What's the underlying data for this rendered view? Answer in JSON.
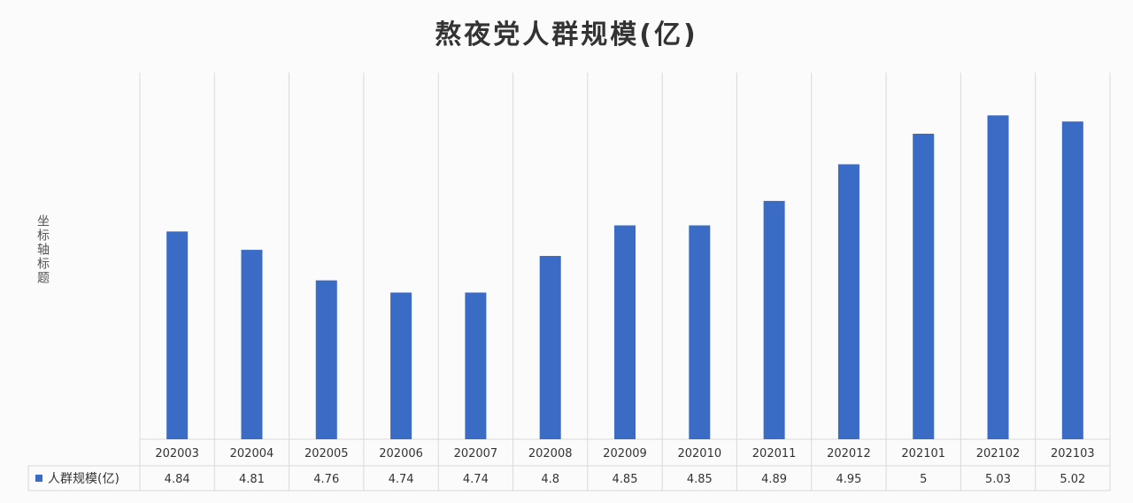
{
  "chart_data": {
    "type": "bar",
    "title": "熬夜党人群规模(亿)",
    "ylabel": "坐标轴标题",
    "xlabel": "",
    "categories": [
      "202003",
      "202004",
      "202005",
      "202006",
      "202007",
      "202008",
      "202009",
      "202010",
      "202011",
      "202012",
      "202101",
      "202102",
      "202103"
    ],
    "series": [
      {
        "name": "人群规模(亿)",
        "values": [
          4.84,
          4.81,
          4.76,
          4.74,
          4.74,
          4.8,
          4.85,
          4.85,
          4.89,
          4.95,
          5,
          5.03,
          5.02
        ],
        "value_labels": [
          "4.84",
          "4.81",
          "4.76",
          "4.74",
          "4.74",
          "4.8",
          "4.85",
          "4.85",
          "4.89",
          "4.95",
          "5",
          "5.03",
          "5.02"
        ]
      }
    ],
    "ylim": [
      4.5,
      5.1
    ],
    "grid": false,
    "data_table": true,
    "colors": {
      "bar": "#3a6cc6",
      "gridline": "#d9d9d9",
      "text": "#333333"
    }
  }
}
